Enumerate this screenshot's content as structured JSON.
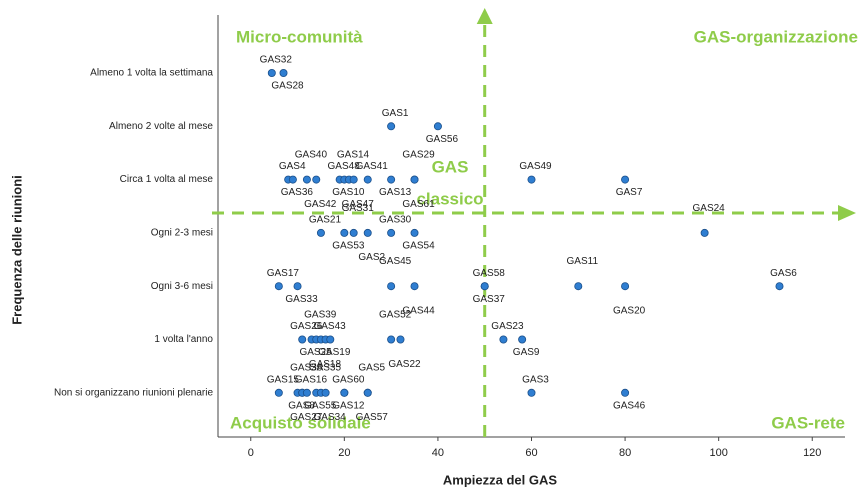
{
  "chart_data": {
    "type": "scatter",
    "x_label": "Ampiezza del GAS",
    "y_label": "Frequenza delle riunioni",
    "categories": [
      "Almeno 1 volta la settimana",
      "Almeno 2 volte al mese",
      "Circa 1 volta al mese",
      "Ogni 2-3 mesi",
      "Ogni 3-6 mesi",
      "1 volta l'anno",
      "Non si organizzano riunioni plenarie"
    ],
    "xlim": [
      -7,
      127
    ],
    "xticks": [
      0,
      20,
      40,
      60,
      80,
      100,
      120
    ],
    "reference_x": 50,
    "color": "#2f7ed1",
    "annotations": [
      "Micro-comunità",
      "GAS-organizzazione",
      "GAS",
      "classico",
      "Acquisto solidale",
      "GAS-rete"
    ],
    "annotation_color": "#8fcc4a",
    "series": [
      {
        "names": [
          "GAS32",
          "GAS28",
          "GAS1",
          "GAS56",
          "GAS4",
          "GAS36",
          "GAS40",
          "GAS42",
          "GAS48",
          "GAS10",
          "GAS14",
          "GAS47",
          "GAS41",
          "GAS13",
          "GAS29",
          "GAS61",
          "GAS49",
          "GAS7",
          "GAS21",
          "GAS53",
          "GAS31",
          "GAS2",
          "GAS30",
          "GAS54",
          "GAS24",
          "GAS17",
          "GAS33",
          "GAS45",
          "GAS44",
          "GAS58",
          "GAS37",
          "GAS11",
          "GAS20",
          "GAS6",
          "GAS26",
          "GAS25",
          "GAS39",
          "GAS18",
          "GAS43",
          "GAS19",
          "GAS52",
          "GAS22",
          "GAS23",
          "GAS9",
          "GAS15",
          "GAS8",
          "GAS38",
          "GAS27",
          "GAS16",
          "GAS55",
          "GAS35",
          "GAS34",
          "GAS60",
          "GAS12",
          "GAS5",
          "GAS57",
          "GAS3",
          "GAS46"
        ],
        "x": [
          4.5,
          7,
          30,
          40,
          8,
          9,
          12,
          14,
          19,
          20,
          21,
          22,
          25,
          30,
          35,
          35,
          60,
          80,
          15,
          20,
          22,
          25,
          30,
          35,
          97,
          6,
          10,
          30,
          35,
          50,
          50,
          70,
          80,
          113,
          11,
          13,
          14,
          15,
          16,
          17,
          30,
          32,
          54,
          58,
          6,
          10,
          11,
          11,
          12,
          14,
          15,
          16,
          20,
          20,
          25,
          25,
          60,
          80
        ],
        "y": [
          "Almeno 1 volta la settimana",
          "Almeno 1 volta la settimana",
          "Almeno 2 volte al mese",
          "Almeno 2 volte al mese",
          "Circa 1 volta al mese",
          "Circa 1 volta al mese",
          "Circa 1 volta al mese",
          "Circa 1 volta al mese",
          "Circa 1 volta al mese",
          "Circa 1 volta al mese",
          "Circa 1 volta al mese",
          "Circa 1 volta al mese",
          "Circa 1 volta al mese",
          "Circa 1 volta al mese",
          "Circa 1 volta al mese",
          "Circa 1 volta al mese",
          "Circa 1 volta al mese",
          "Circa 1 volta al mese",
          "Ogni 2-3 mesi",
          "Ogni 2-3 mesi",
          "Ogni 2-3 mesi",
          "Ogni 2-3 mesi",
          "Ogni 2-3 mesi",
          "Ogni 2-3 mesi",
          "Ogni 2-3 mesi",
          "Ogni 3-6 mesi",
          "Ogni 3-6 mesi",
          "Ogni 3-6 mesi",
          "Ogni 3-6 mesi",
          "Ogni 3-6 mesi",
          "Ogni 3-6 mesi",
          "Ogni 3-6 mesi",
          "Ogni 3-6 mesi",
          "Ogni 3-6 mesi",
          "1 volta l'anno",
          "1 volta l'anno",
          "1 volta l'anno",
          "1 volta l'anno",
          "1 volta l'anno",
          "1 volta l'anno",
          "1 volta l'anno",
          "1 volta l'anno",
          "1 volta l'anno",
          "1 volta l'anno",
          "Non si organizzano riunioni plenarie",
          "Non si organizzano riunioni plenarie",
          "Non si organizzano riunioni plenarie",
          "Non si organizzano riunioni plenarie",
          "Non si organizzano riunioni plenarie",
          "Non si organizzano riunioni plenarie",
          "Non si organizzano riunioni plenarie",
          "Non si organizzano riunioni plenarie",
          "Non si organizzano riunioni plenarie",
          "Non si organizzano riunioni plenarie",
          "Non si organizzano riunioni plenarie",
          "Non si organizzano riunioni plenarie",
          "Non si organizzano riunioni plenarie",
          "Non si organizzano riunioni plenarie"
        ]
      }
    ]
  }
}
